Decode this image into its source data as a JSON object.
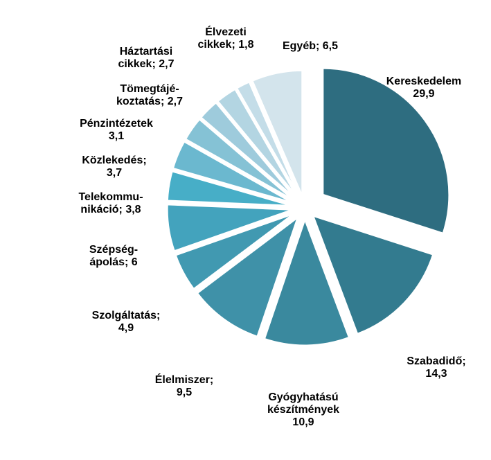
{
  "chart_data": {
    "type": "pie",
    "title": "",
    "slices": [
      {
        "name": "Kereskedelem",
        "value": 29.9,
        "label_lines": [
          "Kereskedelem",
          "29,9"
        ],
        "color": "#2e6d80"
      },
      {
        "name": "Szabadidő",
        "value": 14.3,
        "label_lines": [
          "Szabadidő;",
          "14,3"
        ],
        "color": "#337b8f"
      },
      {
        "name": "Gyógyhatású készítmények",
        "value": 10.9,
        "label_lines": [
          "Gyógyhatású",
          "készítmények",
          "10,9"
        ],
        "color": "#3a899e"
      },
      {
        "name": "Élelmiszer",
        "value": 9.5,
        "label_lines": [
          "Élelmiszer;",
          "9,5"
        ],
        "color": "#3f91a8"
      },
      {
        "name": "Szolgáltatás",
        "value": 4.9,
        "label_lines": [
          "Szolgáltatás;",
          "4,9"
        ],
        "color": "#4199b1"
      },
      {
        "name": "Szépségápolás",
        "value": 6,
        "label_lines": [
          "Szépség-",
          "ápolás; 6"
        ],
        "color": "#43a3bd"
      },
      {
        "name": "Telekommunikáció",
        "value": 3.8,
        "label_lines": [
          "Telekommu-",
          "nikáció; 3,8"
        ],
        "color": "#47aec7"
      },
      {
        "name": "Közlekedés",
        "value": 3.7,
        "label_lines": [
          "Közlekedés;",
          "3,7"
        ],
        "color": "#6bb8cf"
      },
      {
        "name": "Pénzintézetek",
        "value": 3.1,
        "label_lines": [
          "Pénzintézetek",
          "3,1"
        ],
        "color": "#85c2d5"
      },
      {
        "name": "Tömegtájékoztatás",
        "value": 2.7,
        "label_lines": [
          "Tömegtájé-",
          "koztatás; 2,7"
        ],
        "color": "#9ecbdc"
      },
      {
        "name": "Háztartási cikkek",
        "value": 2.7,
        "label_lines": [
          "Háztartási",
          "cikkek; 2,7"
        ],
        "color": "#b3d5e2"
      },
      {
        "name": "Élvezeti cikkek",
        "value": 1.8,
        "label_lines": [
          "Élvezeti",
          "cikkek; 1,8"
        ],
        "color": "#c4dde8"
      },
      {
        "name": "Egyéb",
        "value": 6.5,
        "label_lines": [
          "Egyéb; 6,5"
        ],
        "color": "#d3e4ec"
      }
    ],
    "start_angle_deg": 0,
    "direction": "clockwise",
    "exploded": true,
    "legend": "none"
  }
}
